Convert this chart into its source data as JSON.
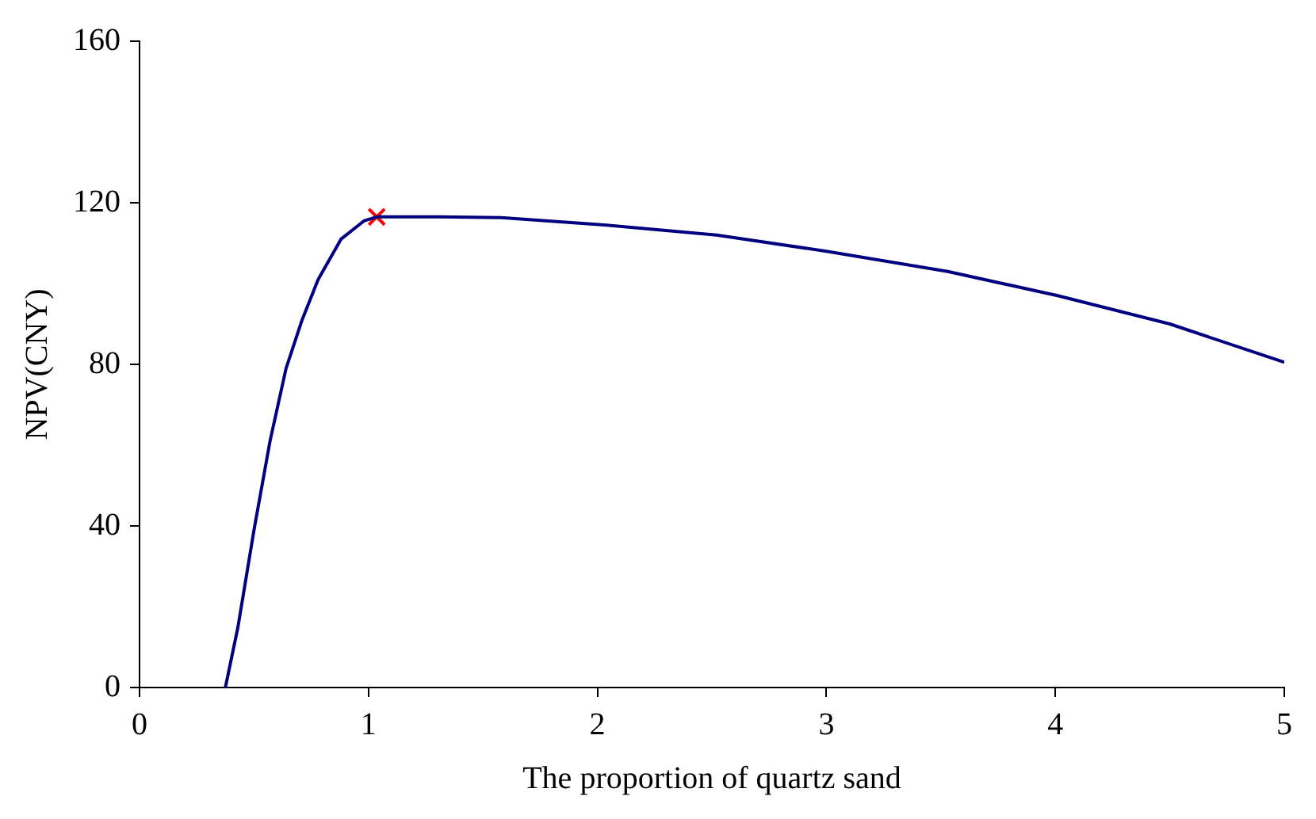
{
  "chart_data": {
    "type": "line",
    "xlabel": "The proportion of quartz sand",
    "ylabel": "NPV(CNY)",
    "xlim": [
      0,
      5
    ],
    "ylim": [
      0,
      160
    ],
    "xticks": [
      0,
      1,
      2,
      3,
      4,
      5
    ],
    "yticks": [
      0,
      40,
      80,
      120,
      160
    ],
    "grid": false,
    "legend": false,
    "series": [
      {
        "type": "line",
        "color": "#000080",
        "marker": "none",
        "line_style": "solid",
        "x": [
          0.375,
          0.43,
          0.5,
          0.57,
          0.64,
          0.71,
          0.78,
          0.88,
          0.98,
          1.036,
          1.3,
          1.58,
          2.03,
          2.52,
          3.0,
          3.53,
          4.01,
          4.5,
          5.0
        ],
        "values": [
          0,
          15,
          39,
          61,
          79,
          91,
          101,
          111,
          115.5,
          116.5,
          116.5,
          116.3,
          114.5,
          112,
          108,
          103,
          97,
          90,
          80.5
        ]
      },
      {
        "type": "scatter",
        "color": "#ff0000",
        "marker": "cross",
        "x": [
          1.036
        ],
        "values": [
          116.5
        ]
      }
    ]
  }
}
